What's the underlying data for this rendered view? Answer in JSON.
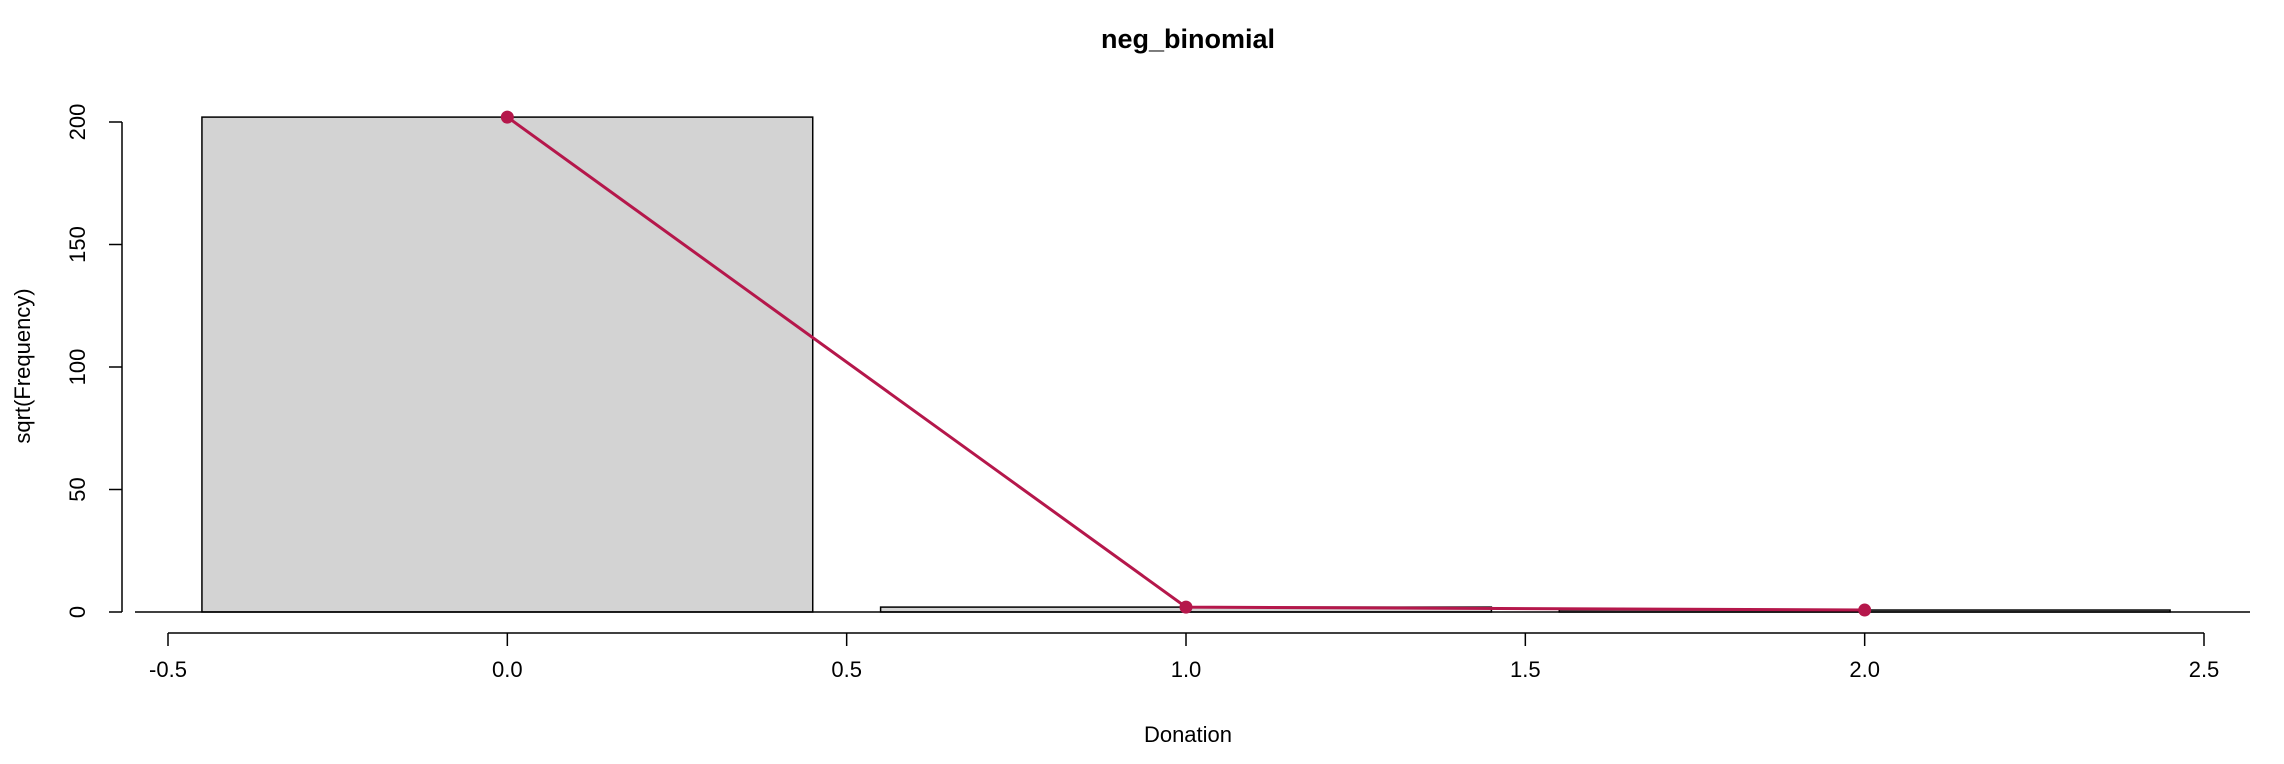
{
  "chart_data": {
    "type": "bar",
    "title": "neg_binomial",
    "xlabel": "Donation",
    "ylabel": "sqrt(Frequency)",
    "xlim": [
      -0.5,
      2.5
    ],
    "ylim": [
      0,
      200
    ],
    "x_ticks": [
      -0.5,
      0.0,
      0.5,
      1.0,
      1.5,
      2.0,
      2.5
    ],
    "x_tick_labels": [
      "-0.5",
      "0.0",
      "0.5",
      "1.0",
      "1.5",
      "2.0",
      "2.5"
    ],
    "y_ticks": [
      0,
      50,
      100,
      150,
      200
    ],
    "y_tick_labels": [
      "0",
      "50",
      "100",
      "150",
      "200"
    ],
    "bars": [
      {
        "x": 0,
        "width": 0.9,
        "value": 202
      },
      {
        "x": 1,
        "width": 0.9,
        "value": 2
      },
      {
        "x": 2,
        "width": 0.9,
        "value": 0.8
      }
    ],
    "fitted_line": {
      "x": [
        0,
        1,
        2
      ],
      "y": [
        202,
        2,
        0.8
      ]
    },
    "colors": {
      "bar_fill": "#d3d3d3",
      "bar_stroke": "#000000",
      "line": "#b5174b"
    },
    "grid": false,
    "legend": "none"
  }
}
